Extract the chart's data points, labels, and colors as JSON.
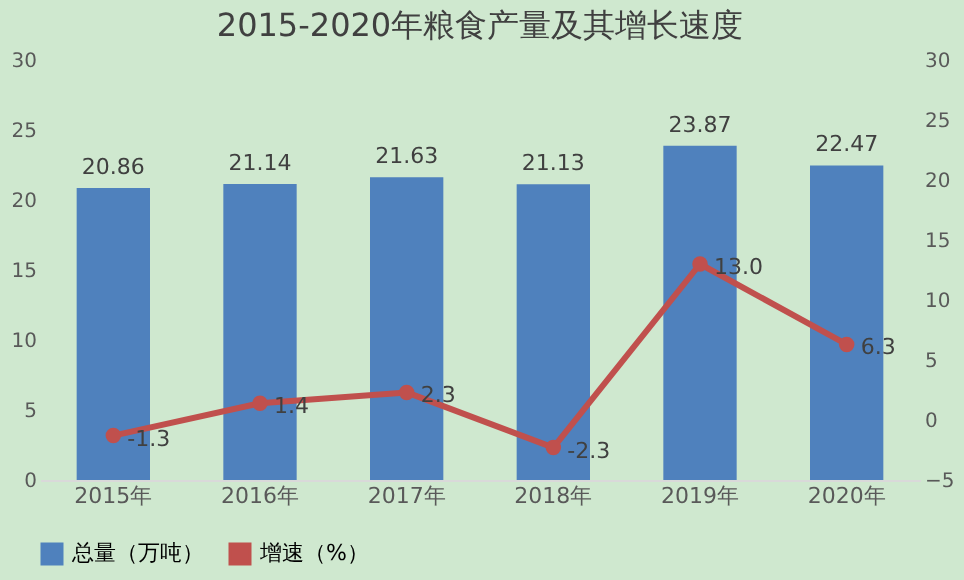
{
  "chart_data": {
    "type": "bar",
    "title": "2015-2020年粮食产量及其增长速度",
    "categories": [
      "2015年",
      "2016年",
      "2017年",
      "2018年",
      "2019年",
      "2020年"
    ],
    "series": [
      {
        "name": "总量（万吨）",
        "color": "#4f81bd",
        "values": [
          20.86,
          21.14,
          21.63,
          21.13,
          23.87,
          22.47
        ],
        "value_labels": [
          "20.86",
          "21.14",
          "21.63",
          "21.13",
          "23.87",
          "22.47"
        ]
      },
      {
        "name": "增速（%）",
        "type": "line",
        "axis": "y2",
        "color": "#c0504d",
        "values": [
          -1.3,
          1.4,
          2.3,
          -2.3,
          13.0,
          6.3
        ],
        "value_labels": [
          "-1.3",
          "1.4",
          "2.3",
          "-2.3",
          "13.0",
          "6.3"
        ],
        "marker": "circle",
        "line_style": "solid"
      }
    ],
    "ylim": [
      0,
      30
    ],
    "yticks": [
      0,
      5,
      10,
      15,
      20,
      25,
      30
    ],
    "y2lim": [
      -5,
      30
    ],
    "y2ticks": [
      -5,
      0,
      5,
      10,
      15,
      20,
      25,
      30
    ],
    "grid": false,
    "legend": "bottom"
  }
}
